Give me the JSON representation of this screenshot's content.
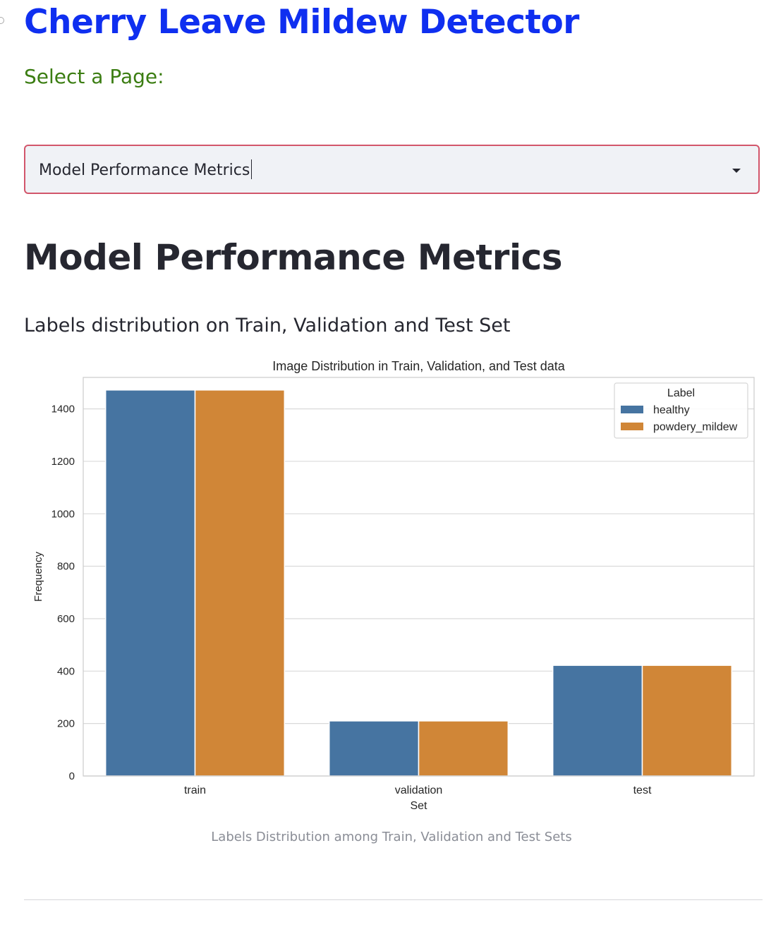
{
  "app": {
    "title": "Cherry Leave Mildew Detector"
  },
  "navigation": {
    "select_label": "Select a Page:",
    "selected_page": "Model Performance Metrics"
  },
  "page": {
    "heading": "Model Performance Metrics",
    "section_heading": "Labels distribution on Train, Validation and Test Set",
    "figure_caption": "Labels Distribution among Train, Validation and Test Sets"
  },
  "colors": {
    "title": "#0f2ff0",
    "select_label": "#3b7d12",
    "select_border": "#d2566b",
    "healthy": "#4674a1",
    "powdery_mildew": "#d08637"
  },
  "icons": {
    "dropdown": "chevron-down-icon"
  },
  "chart_data": {
    "type": "bar",
    "title": "Image Distribution in Train, Validation, and Test data",
    "xlabel": "Set",
    "ylabel": "Frequency",
    "categories": [
      "train",
      "validation",
      "test"
    ],
    "series": [
      {
        "name": "healthy",
        "values": [
          1472,
          210,
          422
        ],
        "color": "#4674a1"
      },
      {
        "name": "powdery_mildew",
        "values": [
          1472,
          210,
          422
        ],
        "color": "#d08637"
      }
    ],
    "ylim": [
      0,
      1520
    ],
    "yticks": [
      0,
      200,
      400,
      600,
      800,
      1000,
      1200,
      1400
    ],
    "grid": true,
    "legend": {
      "title": "Label",
      "placement": "top-right"
    }
  }
}
